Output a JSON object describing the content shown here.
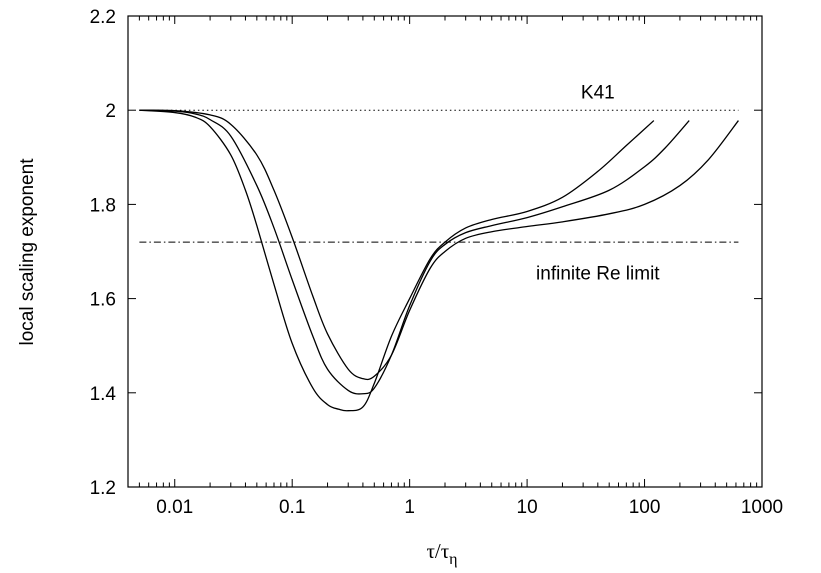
{
  "chart_data": {
    "type": "line",
    "xscale": "log",
    "xlim": [
      0.004,
      1000
    ],
    "ylim": [
      1.2,
      2.2
    ],
    "x_ticks": [
      {
        "value": 0.01,
        "label": "0.01"
      },
      {
        "value": 0.1,
        "label": "0.1"
      },
      {
        "value": 1,
        "label": "1"
      },
      {
        "value": 10,
        "label": "10"
      },
      {
        "value": 100,
        "label": "100"
      },
      {
        "value": 1000,
        "label": "1000"
      }
    ],
    "y_ticks": [
      {
        "value": 1.2,
        "label": "1.2"
      },
      {
        "value": 1.4,
        "label": "1.4"
      },
      {
        "value": 1.6,
        "label": "1.6"
      },
      {
        "value": 1.8,
        "label": "1.8"
      },
      {
        "value": 2.0,
        "label": "2"
      },
      {
        "value": 2.2,
        "label": "2.2"
      }
    ],
    "ylabel": "local scaling exponent",
    "xlabel": {
      "main": "τ/τ",
      "sub": "η"
    },
    "grid": false,
    "reference_lines": [
      {
        "label": "K41",
        "y": 2.0,
        "x_range": [
          0.005,
          630
        ],
        "style": "dotted",
        "label_x": 40,
        "label_y": 2.04
      },
      {
        "label": "infinite Re limit",
        "y": 1.72,
        "x_range": [
          0.005,
          630
        ],
        "style": "dashdot",
        "label_x": 40,
        "label_y": 1.655
      }
    ],
    "series": [
      {
        "color": "#000000",
        "x": [
          0.005,
          0.01,
          0.015,
          0.02,
          0.03,
          0.04,
          0.05,
          0.07,
          0.1,
          0.15,
          0.2,
          0.25,
          0.3,
          0.4,
          0.5,
          0.7,
          1,
          1.5,
          2,
          3,
          5,
          10,
          20,
          40,
          70,
          120
        ],
        "y": [
          2.0,
          1.995,
          1.985,
          1.965,
          1.905,
          1.83,
          1.755,
          1.63,
          1.505,
          1.41,
          1.375,
          1.365,
          1.362,
          1.37,
          1.42,
          1.52,
          1.6,
          1.685,
          1.72,
          1.75,
          1.768,
          1.785,
          1.815,
          1.87,
          1.925,
          1.978
        ]
      },
      {
        "color": "#000000",
        "x": [
          0.005,
          0.01,
          0.015,
          0.02,
          0.03,
          0.05,
          0.07,
          0.1,
          0.15,
          0.2,
          0.3,
          0.4,
          0.5,
          0.7,
          1,
          1.5,
          2,
          3,
          5,
          10,
          20,
          50,
          100,
          150,
          240
        ],
        "y": [
          2.0,
          1.998,
          1.992,
          1.98,
          1.945,
          1.84,
          1.75,
          1.64,
          1.52,
          1.45,
          1.405,
          1.398,
          1.41,
          1.48,
          1.585,
          1.68,
          1.715,
          1.74,
          1.755,
          1.772,
          1.795,
          1.83,
          1.88,
          1.92,
          1.978
        ]
      },
      {
        "color": "#000000",
        "x": [
          0.005,
          0.01,
          0.02,
          0.03,
          0.05,
          0.07,
          0.1,
          0.15,
          0.2,
          0.3,
          0.4,
          0.5,
          0.7,
          1,
          1.5,
          2,
          3,
          5,
          10,
          20,
          50,
          100,
          200,
          350,
          630
        ],
        "y": [
          2.0,
          1.999,
          1.99,
          1.97,
          1.905,
          1.83,
          1.73,
          1.605,
          1.525,
          1.45,
          1.43,
          1.435,
          1.48,
          1.575,
          1.665,
          1.7,
          1.728,
          1.742,
          1.753,
          1.763,
          1.78,
          1.8,
          1.84,
          1.895,
          1.978
        ]
      }
    ]
  }
}
